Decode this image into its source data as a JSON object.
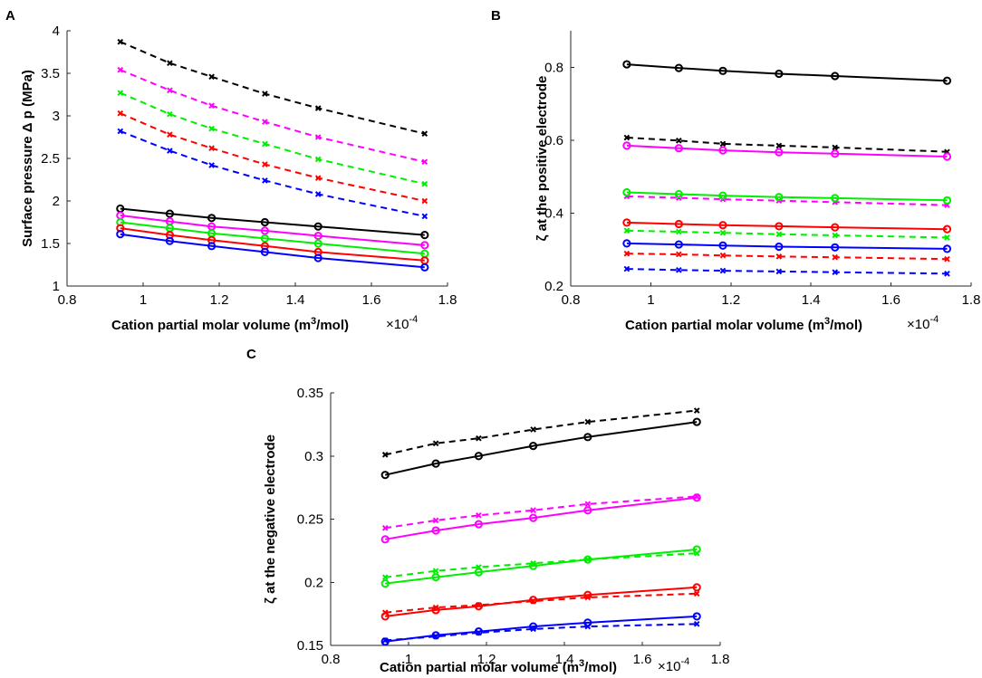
{
  "series_colors": {
    "black": "#000000",
    "magenta": "#ff00ff",
    "green": "#00ee00",
    "red": "#ff0000",
    "blue": "#0000ff"
  },
  "chart_data": [
    {
      "panel": "A",
      "type": "line",
      "xlabel_main": "Cation partial molar volume (m",
      "xlabel_sup": "3",
      "xlabel_tail": "/mol)",
      "xscale_text": "×10",
      "xscale_exp": "-4",
      "ylabel": "Surface pressure Δ p (MPa)",
      "xlim": [
        0.8,
        1.8
      ],
      "ylim": [
        1,
        4
      ],
      "xticks": [
        "0.8",
        "1",
        "1.2",
        "1.4",
        "1.6",
        "1.8"
      ],
      "yticks": [
        "1",
        "1.5",
        "2",
        "2.5",
        "3",
        "3.5",
        "4"
      ],
      "x": [
        0.94,
        1.07,
        1.18,
        1.32,
        1.46,
        1.74
      ],
      "series": [
        {
          "name": "black-dashed",
          "color": "#000000",
          "style": "dashed",
          "marker": "x",
          "values": [
            3.87,
            3.62,
            3.46,
            3.26,
            3.09,
            2.79
          ]
        },
        {
          "name": "magenta-dashed",
          "color": "#ff00ff",
          "style": "dashed",
          "marker": "x",
          "values": [
            3.54,
            3.3,
            3.12,
            2.93,
            2.75,
            2.46
          ]
        },
        {
          "name": "green-dashed",
          "color": "#00ee00",
          "style": "dashed",
          "marker": "x",
          "values": [
            3.27,
            3.02,
            2.85,
            2.67,
            2.49,
            2.2
          ]
        },
        {
          "name": "red-dashed",
          "color": "#ff0000",
          "style": "dashed",
          "marker": "x",
          "values": [
            3.03,
            2.78,
            2.62,
            2.43,
            2.27,
            2.0
          ]
        },
        {
          "name": "blue-dashed",
          "color": "#0000ff",
          "style": "dashed",
          "marker": "x",
          "values": [
            2.82,
            2.59,
            2.42,
            2.24,
            2.08,
            1.82
          ]
        },
        {
          "name": "black-solid",
          "color": "#000000",
          "style": "solid",
          "marker": "o",
          "values": [
            1.91,
            1.85,
            1.8,
            1.75,
            1.7,
            1.6
          ]
        },
        {
          "name": "magenta-solid",
          "color": "#ff00ff",
          "style": "solid",
          "marker": "o",
          "values": [
            1.83,
            1.76,
            1.7,
            1.65,
            1.59,
            1.48
          ]
        },
        {
          "name": "green-solid",
          "color": "#00ee00",
          "style": "solid",
          "marker": "o",
          "values": [
            1.75,
            1.68,
            1.62,
            1.56,
            1.5,
            1.38
          ]
        },
        {
          "name": "red-solid",
          "color": "#ff0000",
          "style": "solid",
          "marker": "o",
          "values": [
            1.68,
            1.6,
            1.54,
            1.47,
            1.4,
            1.3
          ]
        },
        {
          "name": "blue-solid",
          "color": "#0000ff",
          "style": "solid",
          "marker": "o",
          "values": [
            1.61,
            1.53,
            1.47,
            1.4,
            1.33,
            1.22
          ]
        }
      ]
    },
    {
      "panel": "B",
      "type": "line",
      "xlabel_main": "Cation partial molar volume (m",
      "xlabel_sup": "3",
      "xlabel_tail": "/mol)",
      "xscale_text": "×10",
      "xscale_exp": "-4",
      "ylabel": "ζ at the positive electrode",
      "xlim": [
        0.8,
        1.8
      ],
      "ylim": [
        0.2,
        0.9
      ],
      "xticks": [
        "0.8",
        "1",
        "1.2",
        "1.4",
        "1.6",
        "1.8"
      ],
      "yticks": [
        "0.2",
        "0.4",
        "0.6",
        "0.8"
      ],
      "x": [
        0.94,
        1.07,
        1.18,
        1.32,
        1.46,
        1.74
      ],
      "series": [
        {
          "name": "black-solid",
          "color": "#000000",
          "style": "solid",
          "marker": "o",
          "values": [
            0.808,
            0.798,
            0.79,
            0.782,
            0.776,
            0.763
          ]
        },
        {
          "name": "black-dashed",
          "color": "#000000",
          "style": "dashed",
          "marker": "x",
          "values": [
            0.607,
            0.599,
            0.59,
            0.585,
            0.58,
            0.568
          ]
        },
        {
          "name": "magenta-solid",
          "color": "#ff00ff",
          "style": "solid",
          "marker": "o",
          "values": [
            0.585,
            0.578,
            0.572,
            0.567,
            0.563,
            0.555
          ]
        },
        {
          "name": "magenta-dashed",
          "color": "#ff00ff",
          "style": "dashed",
          "marker": "x",
          "values": [
            0.446,
            0.442,
            0.438,
            0.434,
            0.43,
            0.422
          ]
        },
        {
          "name": "green-solid",
          "color": "#00ee00",
          "style": "solid",
          "marker": "o",
          "values": [
            0.457,
            0.452,
            0.448,
            0.444,
            0.441,
            0.435
          ]
        },
        {
          "name": "red-solid",
          "color": "#ff0000",
          "style": "solid",
          "marker": "o",
          "values": [
            0.374,
            0.37,
            0.367,
            0.364,
            0.361,
            0.356
          ]
        },
        {
          "name": "green-dashed",
          "color": "#00ee00",
          "style": "dashed",
          "marker": "x",
          "values": [
            0.352,
            0.349,
            0.346,
            0.342,
            0.339,
            0.333
          ]
        },
        {
          "name": "blue-solid",
          "color": "#0000ff",
          "style": "solid",
          "marker": "o",
          "values": [
            0.317,
            0.314,
            0.311,
            0.308,
            0.306,
            0.302
          ]
        },
        {
          "name": "red-dashed",
          "color": "#ff0000",
          "style": "dashed",
          "marker": "x",
          "values": [
            0.289,
            0.287,
            0.284,
            0.281,
            0.279,
            0.274
          ]
        },
        {
          "name": "blue-dashed",
          "color": "#0000ff",
          "style": "dashed",
          "marker": "x",
          "values": [
            0.247,
            0.244,
            0.242,
            0.24,
            0.238,
            0.234
          ]
        }
      ]
    },
    {
      "panel": "C",
      "type": "line",
      "xlabel_main": "Cation partial molar volume (m",
      "xlabel_sup": "3",
      "xlabel_tail": "/mol)",
      "xscale_text": "×10",
      "xscale_exp": "-4",
      "ylabel": "ζ at the negative electrode",
      "xlim": [
        0.8,
        1.8
      ],
      "ylim": [
        0.15,
        0.35
      ],
      "xticks": [
        "0.8",
        "1",
        "1.2",
        "1.4",
        "1.6",
        "1.8"
      ],
      "yticks": [
        "0.15",
        "0.2",
        "0.25",
        "0.3",
        "0.35"
      ],
      "x": [
        0.94,
        1.07,
        1.18,
        1.32,
        1.46,
        1.74
      ],
      "series": [
        {
          "name": "black-dashed",
          "color": "#000000",
          "style": "dashed",
          "marker": "x",
          "values": [
            0.301,
            0.31,
            0.314,
            0.321,
            0.327,
            0.336
          ]
        },
        {
          "name": "black-solid",
          "color": "#000000",
          "style": "solid",
          "marker": "o",
          "values": [
            0.285,
            0.294,
            0.3,
            0.308,
            0.315,
            0.327
          ]
        },
        {
          "name": "magenta-dashed",
          "color": "#ff00ff",
          "style": "dashed",
          "marker": "x",
          "values": [
            0.243,
            0.249,
            0.253,
            0.257,
            0.262,
            0.268
          ]
        },
        {
          "name": "magenta-solid",
          "color": "#ff00ff",
          "style": "solid",
          "marker": "o",
          "values": [
            0.234,
            0.241,
            0.246,
            0.251,
            0.257,
            0.267
          ]
        },
        {
          "name": "green-dashed",
          "color": "#00ee00",
          "style": "dashed",
          "marker": "x",
          "values": [
            0.204,
            0.209,
            0.212,
            0.215,
            0.218,
            0.223
          ]
        },
        {
          "name": "green-solid",
          "color": "#00ee00",
          "style": "solid",
          "marker": "o",
          "values": [
            0.199,
            0.204,
            0.208,
            0.213,
            0.218,
            0.226
          ]
        },
        {
          "name": "red-dashed",
          "color": "#ff0000",
          "style": "dashed",
          "marker": "x",
          "values": [
            0.176,
            0.18,
            0.182,
            0.185,
            0.188,
            0.191
          ]
        },
        {
          "name": "red-solid",
          "color": "#ff0000",
          "style": "solid",
          "marker": "o",
          "values": [
            0.173,
            0.178,
            0.181,
            0.186,
            0.19,
            0.196
          ]
        },
        {
          "name": "blue-dashed",
          "color": "#0000ff",
          "style": "dashed",
          "marker": "x",
          "values": [
            0.154,
            0.157,
            0.16,
            0.163,
            0.165,
            0.167
          ]
        },
        {
          "name": "blue-solid",
          "color": "#0000ff",
          "style": "solid",
          "marker": "o",
          "values": [
            0.153,
            0.158,
            0.161,
            0.165,
            0.168,
            0.173
          ]
        }
      ]
    }
  ]
}
